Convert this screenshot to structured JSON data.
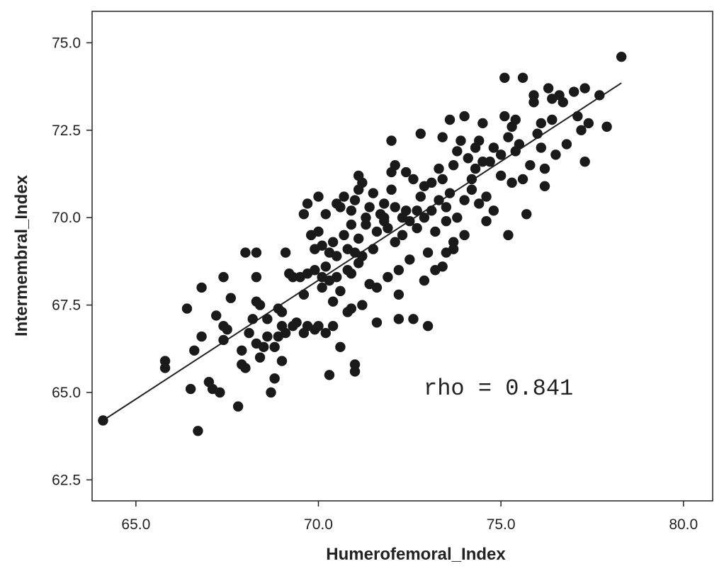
{
  "chart_data": {
    "type": "scatter",
    "xlabel": "Humerofemoral_Index",
    "ylabel": "Intermembral_Index",
    "xlim": [
      63.8,
      80.8
    ],
    "ylim": [
      61.9,
      75.9
    ],
    "xticks": [
      "65.0",
      "70.0",
      "75.0",
      "80.0"
    ],
    "yticks": [
      "62.5",
      "65.0",
      "67.5",
      "70.0",
      "72.5",
      "75.0"
    ],
    "annotation": "rho = 0.841",
    "fit_line": {
      "x": [
        64.1,
        78.3
      ],
      "y": [
        64.2,
        73.85
      ]
    },
    "grid": false,
    "legend": "none",
    "marker_color": "#1a1a1a",
    "points": [
      [
        64.1,
        64.2
      ],
      [
        66.7,
        63.9
      ],
      [
        65.8,
        65.7
      ],
      [
        65.8,
        65.9
      ],
      [
        66.5,
        65.1
      ],
      [
        66.4,
        67.4
      ],
      [
        66.6,
        66.2
      ],
      [
        66.8,
        66.6
      ],
      [
        66.8,
        68.0
      ],
      [
        67.0,
        65.3
      ],
      [
        67.1,
        65.1
      ],
      [
        67.3,
        65.0
      ],
      [
        67.2,
        67.2
      ],
      [
        67.4,
        66.5
      ],
      [
        67.4,
        66.9
      ],
      [
        67.4,
        68.3
      ],
      [
        67.5,
        66.8
      ],
      [
        67.6,
        67.7
      ],
      [
        67.8,
        64.6
      ],
      [
        67.9,
        65.8
      ],
      [
        67.9,
        66.2
      ],
      [
        68.0,
        65.7
      ],
      [
        68.0,
        69.0
      ],
      [
        68.1,
        66.7
      ],
      [
        68.2,
        67.1
      ],
      [
        68.3,
        66.4
      ],
      [
        68.3,
        68.3
      ],
      [
        68.3,
        69.0
      ],
      [
        68.3,
        67.6
      ],
      [
        68.4,
        66.0
      ],
      [
        68.4,
        67.5
      ],
      [
        68.5,
        66.3
      ],
      [
        68.6,
        67.1
      ],
      [
        68.7,
        65.0
      ],
      [
        68.8,
        65.4
      ],
      [
        68.8,
        66.3
      ],
      [
        68.9,
        66.6
      ],
      [
        68.9,
        67.4
      ],
      [
        69.0,
        66.9
      ],
      [
        69.0,
        67.3
      ],
      [
        69.1,
        69.0
      ],
      [
        69.1,
        66.7
      ],
      [
        69.2,
        68.4
      ],
      [
        69.3,
        66.9
      ],
      [
        69.4,
        67.0
      ],
      [
        69.5,
        68.3
      ],
      [
        69.6,
        66.7
      ],
      [
        69.6,
        67.8
      ],
      [
        69.7,
        66.9
      ],
      [
        69.7,
        68.4
      ],
      [
        69.8,
        69.5
      ],
      [
        69.6,
        70.1
      ],
      [
        69.7,
        70.4
      ],
      [
        69.9,
        66.8
      ],
      [
        69.9,
        68.5
      ],
      [
        69.9,
        69.1
      ],
      [
        70.0,
        70.6
      ],
      [
        70.0,
        69.6
      ],
      [
        70.0,
        66.9
      ],
      [
        70.1,
        68.0
      ],
      [
        70.1,
        69.2
      ],
      [
        70.1,
        68.3
      ],
      [
        70.2,
        66.7
      ],
      [
        70.2,
        68.6
      ],
      [
        70.2,
        70.1
      ],
      [
        70.3,
        69.0
      ],
      [
        70.3,
        68.2
      ],
      [
        70.3,
        65.5
      ],
      [
        70.4,
        66.9
      ],
      [
        70.4,
        67.6
      ],
      [
        70.4,
        69.3
      ],
      [
        70.5,
        68.3
      ],
      [
        70.5,
        68.9
      ],
      [
        70.6,
        66.3
      ],
      [
        70.6,
        67.9
      ],
      [
        70.6,
        70.3
      ],
      [
        70.7,
        69.5
      ],
      [
        70.7,
        70.6
      ],
      [
        70.8,
        67.3
      ],
      [
        70.8,
        68.5
      ],
      [
        70.8,
        69.1
      ],
      [
        70.9,
        69.8
      ],
      [
        70.9,
        70.2
      ],
      [
        70.9,
        67.4
      ],
      [
        71.0,
        70.5
      ],
      [
        71.0,
        69.0
      ],
      [
        71.0,
        65.8
      ],
      [
        71.0,
        65.6
      ],
      [
        71.1,
        71.2
      ],
      [
        71.1,
        70.8
      ],
      [
        71.1,
        68.7
      ],
      [
        71.1,
        69.4
      ],
      [
        71.2,
        68.9
      ],
      [
        71.2,
        67.5
      ],
      [
        71.3,
        70.0
      ],
      [
        71.3,
        69.8
      ],
      [
        71.4,
        70.3
      ],
      [
        71.4,
        68.1
      ],
      [
        71.5,
        70.7
      ],
      [
        71.5,
        69.1
      ],
      [
        71.6,
        69.6
      ],
      [
        71.6,
        68.0
      ],
      [
        71.6,
        67.0
      ],
      [
        71.7,
        70.1
      ],
      [
        71.8,
        70.4
      ],
      [
        71.8,
        69.9
      ],
      [
        71.9,
        68.3
      ],
      [
        71.9,
        69.7
      ],
      [
        72.0,
        70.8
      ],
      [
        72.0,
        71.3
      ],
      [
        72.0,
        72.2
      ],
      [
        72.1,
        71.5
      ],
      [
        72.1,
        70.3
      ],
      [
        72.1,
        69.3
      ],
      [
        72.2,
        67.8
      ],
      [
        72.2,
        68.5
      ],
      [
        72.2,
        67.1
      ],
      [
        72.3,
        70.0
      ],
      [
        72.3,
        69.5
      ],
      [
        72.4,
        71.3
      ],
      [
        72.4,
        70.2
      ],
      [
        72.5,
        69.9
      ],
      [
        72.5,
        68.8
      ],
      [
        72.6,
        67.1
      ],
      [
        72.6,
        71.1
      ],
      [
        72.7,
        70.2
      ],
      [
        72.7,
        69.7
      ],
      [
        72.8,
        72.4
      ],
      [
        72.8,
        70.6
      ],
      [
        72.9,
        70.0
      ],
      [
        72.9,
        68.2
      ],
      [
        73.0,
        69.0
      ],
      [
        73.0,
        66.9
      ],
      [
        73.1,
        71.0
      ],
      [
        73.1,
        70.2
      ],
      [
        73.2,
        69.6
      ],
      [
        73.2,
        68.5
      ],
      [
        73.3,
        70.5
      ],
      [
        73.3,
        71.4
      ],
      [
        73.4,
        72.3
      ],
      [
        73.4,
        71.1
      ],
      [
        73.4,
        68.6
      ],
      [
        73.5,
        70.3
      ],
      [
        73.5,
        69.9
      ],
      [
        73.5,
        69.0
      ],
      [
        73.6,
        72.8
      ],
      [
        73.6,
        70.7
      ],
      [
        73.7,
        71.5
      ],
      [
        73.7,
        69.3
      ],
      [
        73.8,
        71.9
      ],
      [
        73.8,
        70.0
      ],
      [
        73.9,
        72.2
      ],
      [
        74.0,
        72.9
      ],
      [
        74.0,
        70.5
      ],
      [
        74.0,
        69.5
      ],
      [
        74.1,
        71.7
      ],
      [
        74.2,
        71.1
      ],
      [
        74.2,
        70.8
      ],
      [
        74.3,
        72.0
      ],
      [
        74.3,
        71.4
      ],
      [
        74.4,
        72.2
      ],
      [
        74.4,
        70.4
      ],
      [
        74.5,
        71.6
      ],
      [
        74.5,
        72.7
      ],
      [
        74.6,
        70.6
      ],
      [
        74.6,
        69.9
      ],
      [
        74.7,
        71.6
      ],
      [
        74.8,
        70.2
      ],
      [
        75.0,
        71.8
      ],
      [
        75.0,
        71.2
      ],
      [
        75.1,
        72.9
      ],
      [
        75.1,
        74.0
      ],
      [
        75.2,
        72.3
      ],
      [
        75.2,
        69.5
      ],
      [
        75.3,
        71.0
      ],
      [
        75.3,
        72.6
      ],
      [
        75.4,
        71.9
      ],
      [
        75.4,
        72.8
      ],
      [
        75.5,
        72.1
      ],
      [
        75.6,
        71.1
      ],
      [
        75.6,
        74.0
      ],
      [
        75.7,
        70.1
      ],
      [
        75.8,
        71.5
      ],
      [
        75.9,
        73.5
      ],
      [
        75.9,
        73.3
      ],
      [
        76.0,
        72.4
      ],
      [
        76.1,
        72.0
      ],
      [
        76.1,
        72.7
      ],
      [
        76.2,
        71.4
      ],
      [
        76.2,
        70.9
      ],
      [
        76.3,
        73.7
      ],
      [
        76.4,
        73.4
      ],
      [
        76.4,
        72.8
      ],
      [
        76.5,
        71.8
      ],
      [
        76.6,
        73.5
      ],
      [
        76.7,
        73.3
      ],
      [
        76.8,
        72.1
      ],
      [
        77.0,
        73.6
      ],
      [
        77.1,
        72.9
      ],
      [
        77.2,
        72.5
      ],
      [
        77.3,
        71.6
      ],
      [
        77.3,
        73.7
      ],
      [
        77.4,
        72.7
      ],
      [
        77.7,
        73.5
      ],
      [
        77.9,
        72.6
      ],
      [
        78.3,
        74.6
      ],
      [
        71.8,
        70.0
      ],
      [
        70.9,
        68.4
      ],
      [
        69.3,
        68.3
      ],
      [
        68.6,
        66.6
      ],
      [
        73.7,
        69.1
      ],
      [
        74.8,
        72.0
      ],
      [
        72.9,
        70.9
      ],
      [
        70.5,
        70.4
      ],
      [
        71.2,
        71.0
      ],
      [
        69.0,
        65.9
      ]
    ]
  }
}
